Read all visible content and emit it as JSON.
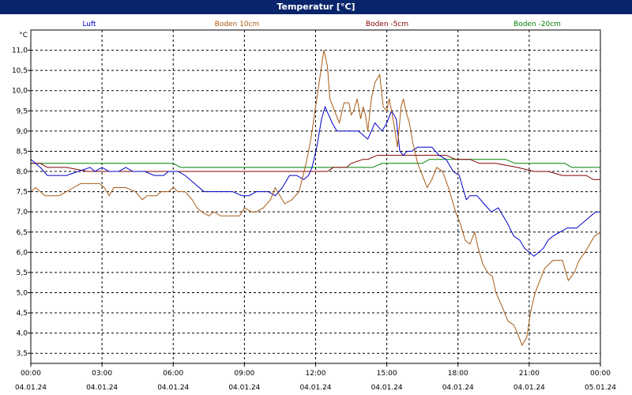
{
  "window": {
    "title": "Temperatur [°C]"
  },
  "colors": {
    "background": "#ffffff",
    "frame": "#d4d0c8",
    "title_bar": "#08246b",
    "series": [
      "#0000c8",
      "#a85a14",
      "#800000",
      "#008000"
    ]
  },
  "chart_data": {
    "type": "line",
    "title": "Temperatur [°C]",
    "ylabel": "°C",
    "ylim": [
      3.25,
      11.5
    ],
    "xlim": [
      0,
      24
    ],
    "grid": true,
    "legend_position": "top",
    "yticks": [
      3.5,
      4.0,
      4.5,
      5.0,
      5.5,
      6.0,
      6.5,
      7.0,
      7.5,
      8.0,
      8.5,
      9.0,
      9.5,
      10.0,
      10.5,
      11.0
    ],
    "ytick_labels": [
      "3,5",
      "4,0",
      "4,5",
      "5,0",
      "5,5",
      "6,0",
      "6,5",
      "7,0",
      "7,5",
      "8,0",
      "8,5",
      "9,0",
      "9,5",
      "10,0",
      "10,5",
      "11,0"
    ],
    "xticks": [
      {
        "x": 0,
        "time": "00:00",
        "date": "04.01.24"
      },
      {
        "x": 3,
        "time": "03:00",
        "date": "04.01.24"
      },
      {
        "x": 6,
        "time": "06:00",
        "date": "04.01.24"
      },
      {
        "x": 9,
        "time": "09:00",
        "date": "04.01.24"
      },
      {
        "x": 12,
        "time": "12:00",
        "date": "04.01.24"
      },
      {
        "x": 15,
        "time": "15:00",
        "date": "04.01.24"
      },
      {
        "x": 18,
        "time": "18:00",
        "date": "04.01.24"
      },
      {
        "x": 21,
        "time": "21:00",
        "date": "04.01.24"
      },
      {
        "x": 24,
        "time": "00:00",
        "date": "05.01.24"
      }
    ],
    "series": [
      {
        "name": "Luft",
        "color": "#0000c8",
        "points": [
          [
            0,
            8.3
          ],
          [
            0.2,
            8.2
          ],
          [
            0.4,
            8.1
          ],
          [
            0.7,
            7.9
          ],
          [
            1.5,
            7.9
          ],
          [
            2,
            8.0
          ],
          [
            2.5,
            8.1
          ],
          [
            2.7,
            8.0
          ],
          [
            3,
            8.1
          ],
          [
            3.3,
            8.0
          ],
          [
            3.7,
            8.0
          ],
          [
            4,
            8.1
          ],
          [
            4.3,
            8.0
          ],
          [
            4.8,
            8.0
          ],
          [
            5.2,
            7.9
          ],
          [
            5.6,
            7.9
          ],
          [
            5.8,
            8.0
          ],
          [
            6.2,
            8.0
          ],
          [
            6.5,
            7.9
          ],
          [
            6.9,
            7.7
          ],
          [
            7.3,
            7.5
          ],
          [
            8.0,
            7.5
          ],
          [
            8.5,
            7.5
          ],
          [
            8.9,
            7.4
          ],
          [
            9.2,
            7.4
          ],
          [
            9.5,
            7.5
          ],
          [
            9.8,
            7.5
          ],
          [
            10.0,
            7.5
          ],
          [
            10.3,
            7.4
          ],
          [
            10.6,
            7.6
          ],
          [
            10.9,
            7.9
          ],
          [
            11.2,
            7.9
          ],
          [
            11.5,
            7.8
          ],
          [
            11.7,
            7.9
          ],
          [
            11.85,
            8.1
          ],
          [
            12.05,
            8.6
          ],
          [
            12.25,
            9.3
          ],
          [
            12.4,
            9.6
          ],
          [
            12.55,
            9.4
          ],
          [
            12.7,
            9.2
          ],
          [
            12.9,
            9.0
          ],
          [
            13.3,
            9.0
          ],
          [
            13.8,
            9.0
          ],
          [
            14.2,
            8.8
          ],
          [
            14.5,
            9.2
          ],
          [
            14.8,
            9.0
          ],
          [
            15.0,
            9.2
          ],
          [
            15.2,
            9.5
          ],
          [
            15.4,
            9.3
          ],
          [
            15.55,
            8.5
          ],
          [
            15.7,
            8.4
          ],
          [
            15.85,
            8.5
          ],
          [
            16.05,
            8.5
          ],
          [
            16.3,
            8.6
          ],
          [
            16.9,
            8.6
          ],
          [
            17.2,
            8.4
          ],
          [
            17.5,
            8.3
          ],
          [
            17.8,
            8.0
          ],
          [
            18.05,
            7.9
          ],
          [
            18.2,
            7.6
          ],
          [
            18.35,
            7.3
          ],
          [
            18.5,
            7.4
          ],
          [
            18.8,
            7.4
          ],
          [
            19.1,
            7.2
          ],
          [
            19.4,
            7.0
          ],
          [
            19.7,
            7.1
          ],
          [
            19.9,
            6.9
          ],
          [
            20.1,
            6.7
          ],
          [
            20.35,
            6.4
          ],
          [
            20.6,
            6.3
          ],
          [
            20.8,
            6.1
          ],
          [
            21.0,
            6.0
          ],
          [
            21.2,
            5.9
          ],
          [
            21.4,
            6.0
          ],
          [
            21.6,
            6.1
          ],
          [
            21.8,
            6.3
          ],
          [
            22.0,
            6.4
          ],
          [
            22.3,
            6.5
          ],
          [
            22.6,
            6.6
          ],
          [
            23.0,
            6.6
          ],
          [
            23.2,
            6.7
          ],
          [
            23.4,
            6.8
          ],
          [
            23.6,
            6.9
          ],
          [
            23.8,
            7.0
          ],
          [
            24,
            7.0
          ]
        ]
      },
      {
        "name": "Boden 10cm",
        "color": "#a85a14",
        "points": [
          [
            0,
            7.5
          ],
          [
            0.2,
            7.6
          ],
          [
            0.4,
            7.5
          ],
          [
            0.6,
            7.4
          ],
          [
            1.2,
            7.4
          ],
          [
            1.5,
            7.5
          ],
          [
            1.8,
            7.6
          ],
          [
            2.1,
            7.7
          ],
          [
            2.4,
            7.7
          ],
          [
            2.9,
            7.7
          ],
          [
            3.1,
            7.6
          ],
          [
            3.3,
            7.4
          ],
          [
            3.5,
            7.6
          ],
          [
            4.0,
            7.6
          ],
          [
            4.4,
            7.5
          ],
          [
            4.7,
            7.3
          ],
          [
            4.9,
            7.4
          ],
          [
            5.3,
            7.4
          ],
          [
            5.5,
            7.5
          ],
          [
            5.8,
            7.5
          ],
          [
            6.0,
            7.6
          ],
          [
            6.2,
            7.5
          ],
          [
            6.5,
            7.5
          ],
          [
            6.8,
            7.3
          ],
          [
            7.0,
            7.1
          ],
          [
            7.2,
            7.0
          ],
          [
            7.5,
            6.9
          ],
          [
            7.7,
            7.0
          ],
          [
            8.0,
            6.9
          ],
          [
            8.8,
            6.9
          ],
          [
            9.0,
            7.1
          ],
          [
            9.3,
            7.0
          ],
          [
            9.5,
            7.0
          ],
          [
            9.8,
            7.1
          ],
          [
            10.1,
            7.3
          ],
          [
            10.3,
            7.6
          ],
          [
            10.5,
            7.4
          ],
          [
            10.7,
            7.2
          ],
          [
            11.0,
            7.3
          ],
          [
            11.3,
            7.5
          ],
          [
            11.6,
            8.2
          ],
          [
            11.8,
            8.8
          ],
          [
            12.0,
            9.6
          ],
          [
            12.2,
            10.4
          ],
          [
            12.35,
            11.0
          ],
          [
            12.5,
            10.6
          ],
          [
            12.6,
            9.8
          ],
          [
            12.8,
            9.5
          ],
          [
            13.0,
            9.2
          ],
          [
            13.2,
            9.7
          ],
          [
            13.4,
            9.7
          ],
          [
            13.5,
            9.4
          ],
          [
            13.6,
            9.5
          ],
          [
            13.75,
            9.8
          ],
          [
            13.9,
            9.3
          ],
          [
            14.0,
            9.6
          ],
          [
            14.1,
            9.4
          ],
          [
            14.2,
            9.0
          ],
          [
            14.35,
            9.8
          ],
          [
            14.5,
            10.2
          ],
          [
            14.7,
            10.4
          ],
          [
            14.85,
            9.6
          ],
          [
            15.0,
            9.5
          ],
          [
            15.1,
            9.8
          ],
          [
            15.2,
            9.5
          ],
          [
            15.35,
            9.0
          ],
          [
            15.45,
            8.6
          ],
          [
            15.6,
            9.6
          ],
          [
            15.7,
            9.8
          ],
          [
            15.8,
            9.5
          ],
          [
            15.95,
            9.2
          ],
          [
            16.1,
            8.7
          ],
          [
            16.3,
            8.2
          ],
          [
            16.5,
            7.9
          ],
          [
            16.7,
            7.6
          ],
          [
            16.9,
            7.8
          ],
          [
            17.1,
            8.1
          ],
          [
            17.35,
            8.0
          ],
          [
            17.6,
            7.6
          ],
          [
            17.9,
            7.0
          ],
          [
            18.1,
            6.7
          ],
          [
            18.3,
            6.3
          ],
          [
            18.5,
            6.2
          ],
          [
            18.7,
            6.5
          ],
          [
            18.85,
            6.1
          ],
          [
            19.05,
            5.7
          ],
          [
            19.25,
            5.5
          ],
          [
            19.45,
            5.4
          ],
          [
            19.6,
            5.0
          ],
          [
            19.75,
            4.8
          ],
          [
            19.9,
            4.6
          ],
          [
            20.1,
            4.3
          ],
          [
            20.35,
            4.2
          ],
          [
            20.5,
            4.0
          ],
          [
            20.7,
            3.7
          ],
          [
            20.9,
            3.9
          ],
          [
            21.05,
            4.5
          ],
          [
            21.25,
            5.0
          ],
          [
            21.45,
            5.3
          ],
          [
            21.65,
            5.6
          ],
          [
            22.0,
            5.8
          ],
          [
            22.4,
            5.8
          ],
          [
            22.65,
            5.3
          ],
          [
            22.9,
            5.5
          ],
          [
            23.1,
            5.8
          ],
          [
            23.35,
            6.0
          ],
          [
            23.55,
            6.2
          ],
          [
            23.75,
            6.4
          ],
          [
            24,
            6.5
          ]
        ]
      },
      {
        "name": "Boden -5cm",
        "color": "#800000",
        "points": [
          [
            0,
            8.2
          ],
          [
            0.4,
            8.2
          ],
          [
            0.7,
            8.1
          ],
          [
            1.5,
            8.1
          ],
          [
            2.4,
            8.0
          ],
          [
            4.5,
            8.0
          ],
          [
            6.5,
            8.0
          ],
          [
            9.0,
            8.0
          ],
          [
            11.3,
            8.0
          ],
          [
            12.5,
            8.0
          ],
          [
            12.75,
            8.1
          ],
          [
            13.3,
            8.1
          ],
          [
            13.5,
            8.2
          ],
          [
            14.0,
            8.3
          ],
          [
            14.2,
            8.3
          ],
          [
            14.6,
            8.4
          ],
          [
            15.5,
            8.4
          ],
          [
            16.0,
            8.4
          ],
          [
            16.4,
            8.4
          ],
          [
            17.1,
            8.4
          ],
          [
            17.5,
            8.4
          ],
          [
            17.9,
            8.3
          ],
          [
            18.5,
            8.3
          ],
          [
            18.9,
            8.2
          ],
          [
            19.6,
            8.2
          ],
          [
            20.5,
            8.1
          ],
          [
            21.2,
            8.0
          ],
          [
            21.8,
            8.0
          ],
          [
            22.4,
            7.9
          ],
          [
            23.4,
            7.9
          ],
          [
            23.7,
            7.8
          ],
          [
            24,
            7.8
          ]
        ]
      },
      {
        "name": "Boden -20cm",
        "color": "#008000",
        "points": [
          [
            0,
            8.2
          ],
          [
            0.8,
            8.2
          ],
          [
            1.2,
            8.2
          ],
          [
            2.1,
            8.2
          ],
          [
            6.0,
            8.2
          ],
          [
            6.3,
            8.1
          ],
          [
            11.4,
            8.1
          ],
          [
            11.6,
            8.1
          ],
          [
            14.4,
            8.1
          ],
          [
            14.8,
            8.2
          ],
          [
            16.5,
            8.2
          ],
          [
            16.8,
            8.3
          ],
          [
            20.0,
            8.3
          ],
          [
            20.4,
            8.2
          ],
          [
            22.5,
            8.2
          ],
          [
            22.8,
            8.1
          ],
          [
            24,
            8.1
          ]
        ]
      }
    ]
  }
}
